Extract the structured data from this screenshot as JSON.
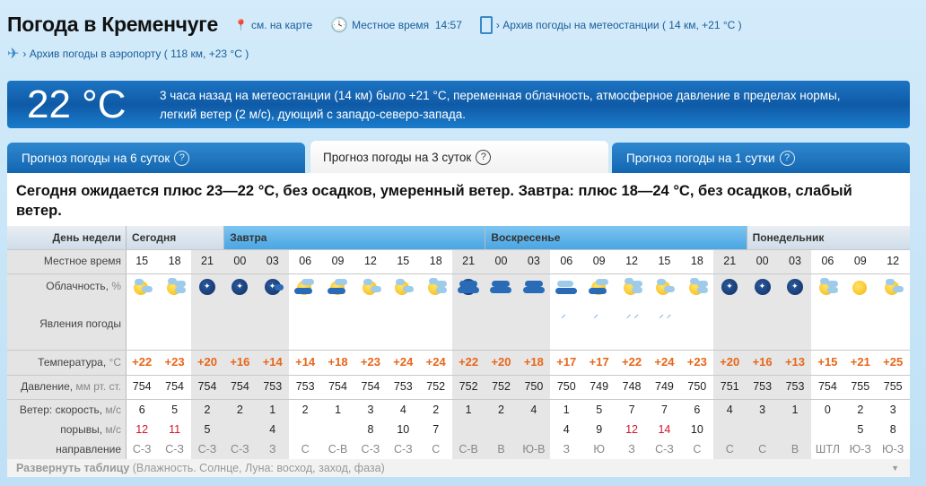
{
  "header": {
    "title": "Погода в Кременчуге",
    "map_link": "см. на карте",
    "local_time_label": "Местное время",
    "local_time": "14:57",
    "station_archive": "› Архив погоды на метеостанции ( 14 км, +21 °C )",
    "airport_archive": "› Архив погоды в аэропорту ( 118 км, +23 °C )"
  },
  "current": {
    "temp": "22 °C",
    "description": "3 часа назад на метеостанции (14 км) было +21 °C, переменная облачность, атмосферное давление в пределах нормы, легкий ветер (2 м/с), дующий с западо-северо-запада."
  },
  "tabs": [
    {
      "label": "Прогноз погоды на 6 суток",
      "active": false
    },
    {
      "label": "Прогноз погоды на 3 суток",
      "active": true
    },
    {
      "label": "Прогноз погоды на 1 сутки",
      "active": false
    }
  ],
  "help": "?",
  "summary": "Сегодня ожидается плюс 23—22 °C, без осадков, умеренный ветер. Завтра: плюс 18—24 °C, без осадков, слабый ветер.",
  "labels": {
    "day": "День недели",
    "time": "Местное время",
    "cloud": "Облачность,",
    "cloud_unit": "%",
    "phen": "Явления погоды",
    "temp": "Температура,",
    "temp_unit": "°C",
    "press": "Давление,",
    "press_unit": "мм рт. ст.",
    "wind": "Ветер: скорость,",
    "wind_unit": "м/с",
    "gust": "порывы,",
    "gust_unit": "м/с",
    "dir": "направление"
  },
  "days": [
    {
      "name": "Сегодня",
      "cols": 3
    },
    {
      "name": "Завтра",
      "cols": 8
    },
    {
      "name": "Воскресенье",
      "cols": 8
    },
    {
      "name": "Понедельник",
      "cols": 5
    }
  ],
  "columns": [
    {
      "t": "15",
      "night": false,
      "icon": "sun-cloud",
      "rain": "",
      "temp": "+22",
      "p": "754",
      "ws": "6",
      "wg": "12",
      "wd": "С-З"
    },
    {
      "t": "18",
      "night": false,
      "icon": "sun-clouds",
      "rain": "",
      "temp": "+23",
      "p": "754",
      "ws": "5",
      "wg": "11",
      "wd": "С-З"
    },
    {
      "t": "21",
      "night": true,
      "icon": "moon",
      "rain": "",
      "temp": "+20",
      "p": "754",
      "ws": "2",
      "wg": "5",
      "wd": "С-З"
    },
    {
      "t": "00",
      "night": true,
      "icon": "moon",
      "rain": "",
      "temp": "+16",
      "p": "754",
      "ws": "2",
      "wg": "",
      "wd": "С-З"
    },
    {
      "t": "03",
      "night": true,
      "icon": "moon-cloud",
      "rain": "",
      "temp": "+14",
      "p": "753",
      "ws": "1",
      "wg": "4",
      "wd": "З"
    },
    {
      "t": "06",
      "night": false,
      "icon": "partly-cloudy",
      "rain": "",
      "temp": "+14",
      "p": "753",
      "ws": "2",
      "wg": "",
      "wd": "С"
    },
    {
      "t": "09",
      "night": false,
      "icon": "partly-cloudy",
      "rain": "",
      "temp": "+18",
      "p": "754",
      "ws": "1",
      "wg": "",
      "wd": "С-В"
    },
    {
      "t": "12",
      "night": false,
      "icon": "sun-cloud",
      "rain": "",
      "temp": "+23",
      "p": "754",
      "ws": "3",
      "wg": "8",
      "wd": "С-З"
    },
    {
      "t": "15",
      "night": false,
      "icon": "sun-cloud",
      "rain": "",
      "temp": "+24",
      "p": "753",
      "ws": "4",
      "wg": "10",
      "wd": "С-З"
    },
    {
      "t": "18",
      "night": false,
      "icon": "sun-clouds",
      "rain": "",
      "temp": "+24",
      "p": "752",
      "ws": "2",
      "wg": "7",
      "wd": "С"
    },
    {
      "t": "21",
      "night": true,
      "icon": "night-cloudy",
      "rain": "",
      "temp": "+22",
      "p": "752",
      "ws": "1",
      "wg": "",
      "wd": "С-В"
    },
    {
      "t": "00",
      "night": true,
      "icon": "overcast-dark",
      "rain": "",
      "temp": "+20",
      "p": "752",
      "ws": "2",
      "wg": "",
      "wd": "В"
    },
    {
      "t": "03",
      "night": true,
      "icon": "overcast-dark",
      "rain": "",
      "temp": "+18",
      "p": "750",
      "ws": "4",
      "wg": "",
      "wd": "Ю-В"
    },
    {
      "t": "06",
      "night": false,
      "icon": "cloudy",
      "rain": "light-rain",
      "temp": "+17",
      "p": "750",
      "ws": "1",
      "wg": "4",
      "wd": "З"
    },
    {
      "t": "09",
      "night": false,
      "icon": "partly-cloudy",
      "rain": "light-rain",
      "temp": "+17",
      "p": "749",
      "ws": "5",
      "wg": "9",
      "wd": "Ю"
    },
    {
      "t": "12",
      "night": false,
      "icon": "sun-clouds",
      "rain": "rain",
      "temp": "+22",
      "p": "748",
      "ws": "7",
      "wg": "12",
      "wd": "З"
    },
    {
      "t": "15",
      "night": false,
      "icon": "sun-cloud",
      "rain": "rain",
      "temp": "+24",
      "p": "749",
      "ws": "7",
      "wg": "14",
      "wd": "С-З"
    },
    {
      "t": "18",
      "night": false,
      "icon": "sun-clouds",
      "rain": "",
      "temp": "+23",
      "p": "750",
      "ws": "6",
      "wg": "10",
      "wd": "С"
    },
    {
      "t": "21",
      "night": true,
      "icon": "moon",
      "rain": "",
      "temp": "+20",
      "p": "751",
      "ws": "4",
      "wg": "",
      "wd": "С"
    },
    {
      "t": "00",
      "night": true,
      "icon": "moon",
      "rain": "",
      "temp": "+16",
      "p": "753",
      "ws": "3",
      "wg": "",
      "wd": "С"
    },
    {
      "t": "03",
      "night": true,
      "icon": "moon",
      "rain": "",
      "temp": "+13",
      "p": "753",
      "ws": "1",
      "wg": "",
      "wd": "В"
    },
    {
      "t": "06",
      "night": false,
      "icon": "sun-clouds",
      "rain": "",
      "temp": "+15",
      "p": "754",
      "ws": "0",
      "wg": "",
      "wd": "ШТЛ"
    },
    {
      "t": "09",
      "night": false,
      "icon": "sun",
      "rain": "",
      "temp": "+21",
      "p": "755",
      "ws": "2",
      "wg": "5",
      "wd": "Ю-З"
    },
    {
      "t": "12",
      "night": false,
      "icon": "sun-cloud",
      "rain": "",
      "temp": "+25",
      "p": "755",
      "ws": "3",
      "wg": "8",
      "wd": "Ю-З"
    }
  ],
  "expand": {
    "label": "Развернуть таблицу",
    "details": "(Влажность. Солнце, Луна: восход, заход, фаза)"
  },
  "colors": {
    "accent": "#1466b0",
    "temperature": "#e8661a",
    "gust_alert": "#d3142c",
    "night": "#e6e6e6"
  }
}
